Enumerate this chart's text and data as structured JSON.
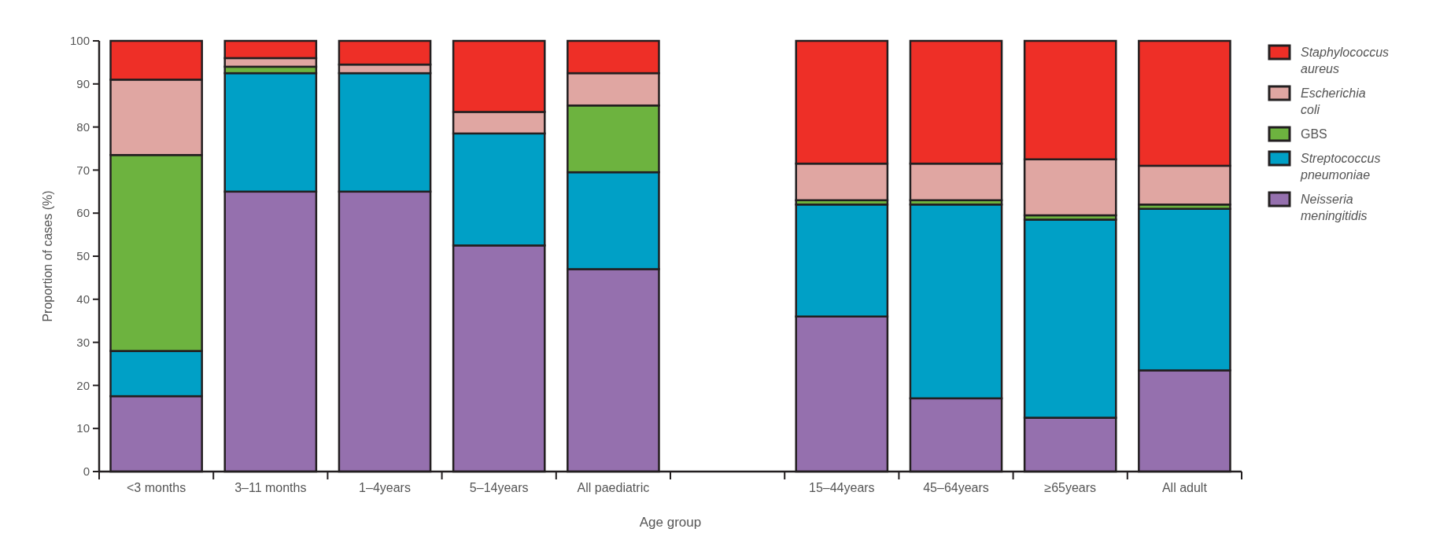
{
  "chart_data": {
    "type": "bar",
    "stacked": true,
    "xlabel": "Age group",
    "ylabel": "Proportion of cases (%)",
    "categories": [
      "<3 months",
      "3–11 months",
      "1–4years",
      "5–14years",
      "All paediatric",
      null,
      "15–44years",
      "45–64years",
      "≥65years",
      "All adult"
    ],
    "series": [
      {
        "name": "Neisseria meningitidis",
        "color": "#9570ae",
        "values": [
          17.5,
          65,
          65,
          52.5,
          47,
          null,
          36,
          17,
          12.5,
          23.5
        ]
      },
      {
        "name": "Streptococcus pneumoniae",
        "color": "#00a0c6",
        "values": [
          10.5,
          27.5,
          27.5,
          26,
          22.5,
          null,
          26,
          45,
          46,
          37.5
        ]
      },
      {
        "name": "GBS",
        "color": "#6db33f",
        "values": [
          45.5,
          1.5,
          0,
          0,
          15.5,
          null,
          1,
          1,
          1,
          1
        ]
      },
      {
        "name": "Escherichia coli",
        "color": "#e0a6a2",
        "values": [
          17.5,
          2,
          2,
          5,
          7.5,
          null,
          8.5,
          8.5,
          13,
          9
        ]
      },
      {
        "name": "Staphylococcus aureus",
        "color": "#ee2f27",
        "values": [
          9,
          4,
          5.5,
          16.5,
          7.5,
          null,
          28.5,
          28.5,
          27.5,
          29
        ]
      }
    ],
    "ylim": [
      0,
      100
    ],
    "yticks": [
      0,
      10,
      20,
      30,
      40,
      50,
      60,
      70,
      80,
      90,
      100
    ],
    "grid": false,
    "legend": "right"
  }
}
